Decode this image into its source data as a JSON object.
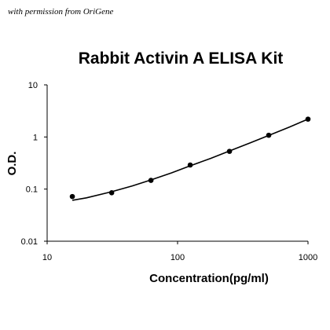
{
  "credit": "with permission from OriGene",
  "chart_data": {
    "type": "scatter",
    "title": "Rabbit Activin A ELISA Kit",
    "xlabel": "Concentration(pg/ml)",
    "ylabel": "O.D.",
    "xscale": "log",
    "yscale": "log",
    "xlim": [
      10,
      1000
    ],
    "ylim": [
      0.01,
      10
    ],
    "x_ticks": [
      {
        "value": 10,
        "label": "10"
      },
      {
        "value": 100,
        "label": "100"
      },
      {
        "value": 1000,
        "label": "1000"
      }
    ],
    "y_ticks": [
      {
        "value": 0.01,
        "label": "0.01"
      },
      {
        "value": 0.1,
        "label": "0.1"
      },
      {
        "value": 1,
        "label": "1"
      },
      {
        "value": 10,
        "label": "10"
      }
    ],
    "grid": false,
    "legend": false,
    "series": [
      {
        "type": "scatter",
        "points": [
          {
            "x": 15.6,
            "y": 0.072
          },
          {
            "x": 31.25,
            "y": 0.085
          },
          {
            "x": 62.5,
            "y": 0.147
          },
          {
            "x": 125,
            "y": 0.29
          },
          {
            "x": 250,
            "y": 0.53
          },
          {
            "x": 500,
            "y": 1.08
          },
          {
            "x": 1000,
            "y": 2.2
          }
        ]
      },
      {
        "type": "line",
        "points": [
          {
            "x": 15.6,
            "y": 0.061
          },
          {
            "x": 20,
            "y": 0.068
          },
          {
            "x": 31.25,
            "y": 0.089
          },
          {
            "x": 45,
            "y": 0.115
          },
          {
            "x": 62.5,
            "y": 0.15
          },
          {
            "x": 90,
            "y": 0.205
          },
          {
            "x": 125,
            "y": 0.28
          },
          {
            "x": 180,
            "y": 0.39
          },
          {
            "x": 250,
            "y": 0.54
          },
          {
            "x": 360,
            "y": 0.77
          },
          {
            "x": 500,
            "y": 1.07
          },
          {
            "x": 720,
            "y": 1.55
          },
          {
            "x": 1000,
            "y": 2.2
          }
        ]
      }
    ]
  }
}
